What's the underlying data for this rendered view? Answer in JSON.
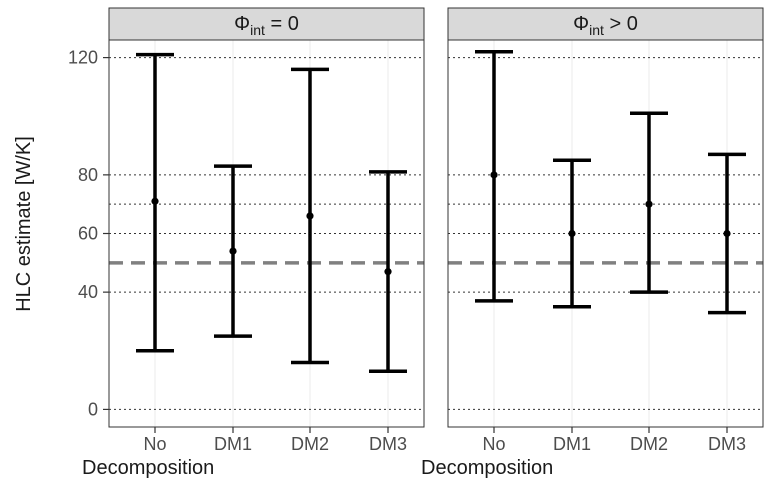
{
  "chart_data": {
    "type": "errorbar",
    "ylabel": "HLC estimate [W/K]",
    "xlabel": "Decomposition",
    "categories": [
      "No",
      "DM1",
      "DM2",
      "DM3"
    ],
    "yticks": [
      0,
      40,
      60,
      80,
      120
    ],
    "ylim": [
      -6,
      126
    ],
    "reference_lines": [
      {
        "style": "dashed",
        "color": "#808080",
        "y": 50
      }
    ],
    "grid": true,
    "panels": [
      {
        "strip": {
          "symbol": "Φ",
          "subscript": "int",
          "relation": " = 0"
        },
        "points": [
          {
            "category": "No",
            "estimate": 71,
            "lower": 20,
            "upper": 121
          },
          {
            "category": "DM1",
            "estimate": 54,
            "lower": 25,
            "upper": 83
          },
          {
            "category": "DM2",
            "estimate": 66,
            "lower": 16,
            "upper": 116
          },
          {
            "category": "DM3",
            "estimate": 47,
            "lower": 13,
            "upper": 81
          }
        ]
      },
      {
        "strip": {
          "symbol": "Φ",
          "subscript": "int",
          "relation": " > 0"
        },
        "points": [
          {
            "category": "No",
            "estimate": 80,
            "lower": 37,
            "upper": 122
          },
          {
            "category": "DM1",
            "estimate": 60,
            "lower": 35,
            "upper": 85
          },
          {
            "category": "DM2",
            "estimate": 70,
            "lower": 40,
            "upper": 101
          },
          {
            "category": "DM3",
            "estimate": 60,
            "lower": 33,
            "upper": 87
          }
        ]
      }
    ]
  }
}
